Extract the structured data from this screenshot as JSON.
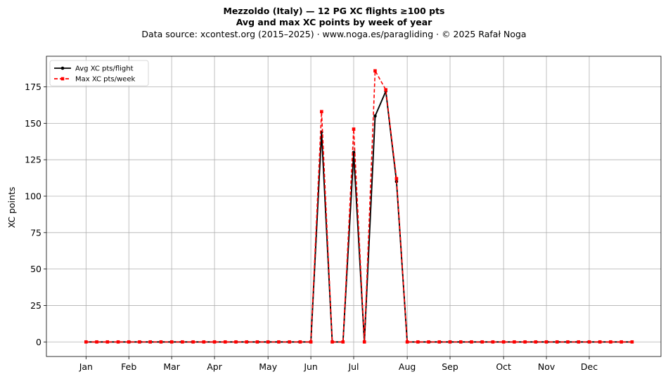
{
  "header": {
    "title_line1": "Mezzoldo (Italy)  —  12 PG XC flights ≥100 pts",
    "title_line2": "Avg and max XC points by week of year",
    "title_line3": "Data source: xcontest.org (2015–2025)  ·  www.noga.es/paragliding  ·  © 2025 Rafał Noga"
  },
  "chart_data": {
    "type": "line",
    "title": "Mezzoldo (Italy)  —  12 PG XC flights ≥100 pts",
    "subtitle": "Avg and max XC points by week of year",
    "xlabel": "",
    "ylabel": "XC points",
    "xlim": [
      -2.7,
      54.7
    ],
    "ylim": [
      -10,
      196
    ],
    "grid": true,
    "legend_position": "top-left",
    "x_ticks": [
      {
        "label": "Jan",
        "week": 1
      },
      {
        "label": "Feb",
        "week": 5
      },
      {
        "label": "Mar",
        "week": 9
      },
      {
        "label": "Apr",
        "week": 13
      },
      {
        "label": "May",
        "week": 18
      },
      {
        "label": "Jun",
        "week": 22
      },
      {
        "label": "Jul",
        "week": 26
      },
      {
        "label": "Aug",
        "week": 31
      },
      {
        "label": "Sep",
        "week": 35
      },
      {
        "label": "Oct",
        "week": 40
      },
      {
        "label": "Nov",
        "week": 44
      },
      {
        "label": "Dec",
        "week": 48
      }
    ],
    "y_ticks": [
      0,
      25,
      50,
      75,
      100,
      125,
      150,
      175
    ],
    "x": [
      1,
      2,
      3,
      4,
      5,
      6,
      7,
      8,
      9,
      10,
      11,
      12,
      13,
      14,
      15,
      16,
      17,
      18,
      19,
      20,
      21,
      22,
      23,
      24,
      25,
      26,
      27,
      28,
      29,
      30,
      31,
      32,
      33,
      34,
      35,
      36,
      37,
      38,
      39,
      40,
      41,
      42,
      43,
      44,
      45,
      46,
      47,
      48,
      49,
      50,
      51,
      52
    ],
    "series": [
      {
        "name": "Avg XC pts/flight",
        "color": "#000000",
        "style": "solid",
        "marker": "circle",
        "values": [
          0,
          0,
          0,
          0,
          0,
          0,
          0,
          0,
          0,
          0,
          0,
          0,
          0,
          0,
          0,
          0,
          0,
          0,
          0,
          0,
          0,
          0,
          144,
          0,
          0,
          130,
          0,
          155,
          172,
          110,
          0,
          0,
          0,
          0,
          0,
          0,
          0,
          0,
          0,
          0,
          0,
          0,
          0,
          0,
          0,
          0,
          0,
          0,
          0,
          0,
          0,
          0
        ]
      },
      {
        "name": "Max XC pts/week",
        "color": "#ff0000",
        "style": "dashed",
        "marker": "square",
        "values": [
          0,
          0,
          0,
          0,
          0,
          0,
          0,
          0,
          0,
          0,
          0,
          0,
          0,
          0,
          0,
          0,
          0,
          0,
          0,
          0,
          0,
          0,
          158,
          0,
          0,
          146,
          0,
          186,
          173,
          112,
          0,
          0,
          0,
          0,
          0,
          0,
          0,
          0,
          0,
          0,
          0,
          0,
          0,
          0,
          0,
          0,
          0,
          0,
          0,
          0,
          0,
          0
        ]
      }
    ]
  }
}
